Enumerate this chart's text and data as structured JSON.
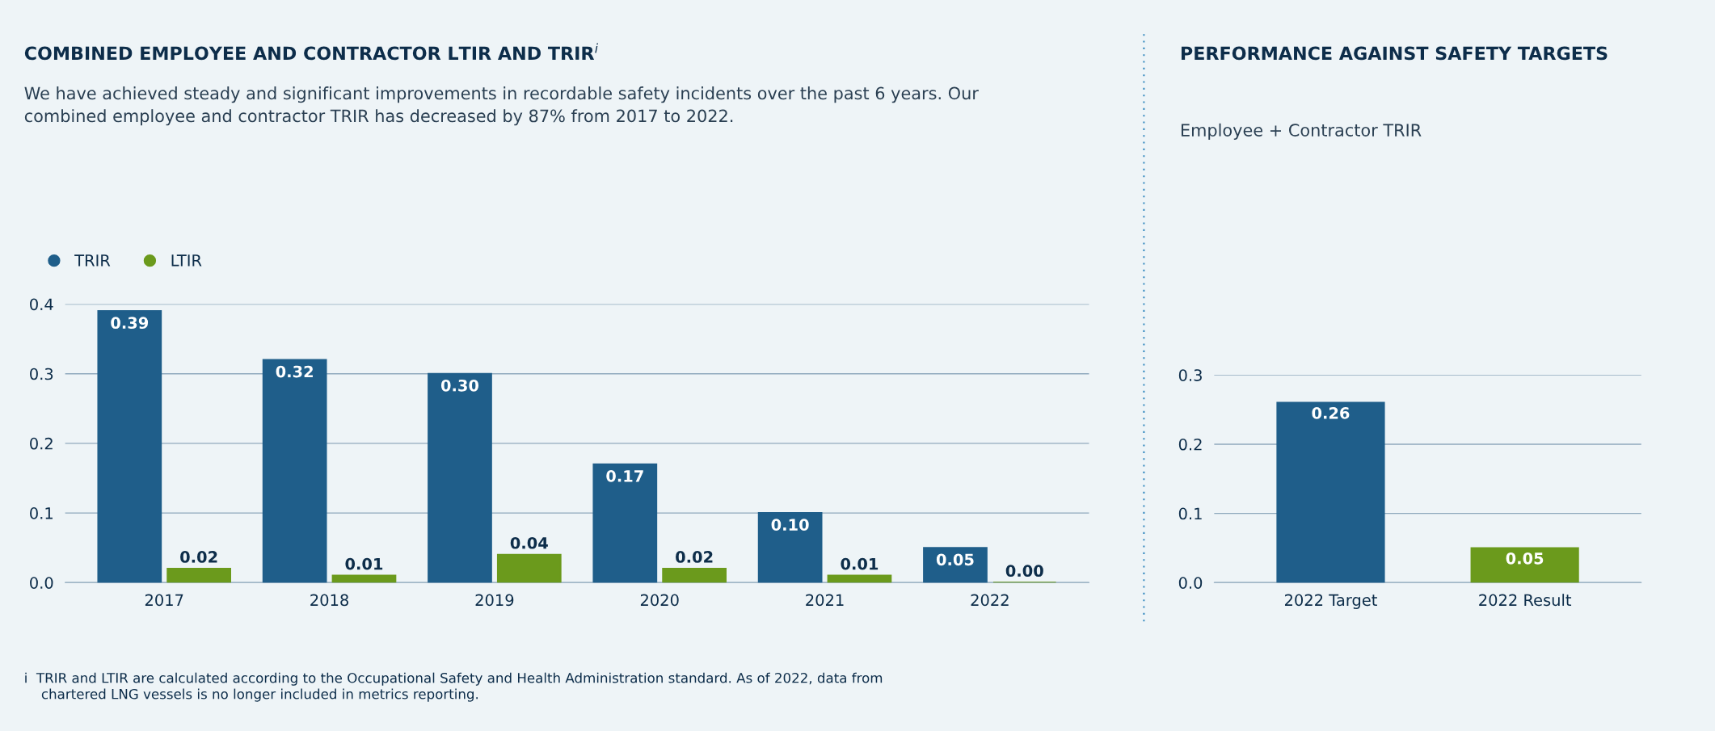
{
  "chart_data": [
    {
      "type": "bar",
      "title": "COMBINED EMPLOYEE AND CONTRACTOR LTIR AND TRIR$^{i}$",
      "subtitle": "We have achieved steady and significant improvements in recordable safety incidents over the past 6 years. Our\ncombined employee and contractor TRIR has decreased by 87% from 2017 to 2022.",
      "categories": [
        "2017",
        "2018",
        "2019",
        "2020",
        "2021",
        "2022"
      ],
      "series": [
        {
          "name": "TRIR",
          "color": "#1f5e8a",
          "values": [
            0.39,
            0.32,
            0.3,
            0.17,
            0.1,
            0.05
          ],
          "value_labels": [
            "0.39",
            "0.32",
            "0.30",
            "0.17",
            "0.10",
            "0.05"
          ]
        },
        {
          "name": "LTIR",
          "color": "#6b9a1c",
          "values": [
            0.02,
            0.01,
            0.04,
            0.02,
            0.01,
            0.0
          ],
          "value_labels": [
            "0.02",
            "0.01",
            "0.04",
            "0.02",
            "0.01",
            "0.00"
          ]
        }
      ],
      "ylim": [
        0.0,
        0.4
      ],
      "yticks": [
        {
          "value": 0,
          "label": "0.0"
        },
        0.1,
        0.2,
        0.3,
        0.4
      ],
      "grid": "y",
      "legend": "top left",
      "marker": "circle",
      "annotations": [
        "i  TRIR and LTIR are calculated according to the Occupational Safety and Health Administration standard. As of 2022, data from\n    chartered LNG vessels is no longer included in metrics reporting."
      ]
    },
    {
      "type": "bar",
      "title": "PERFORMANCE AGAINST SAFETY TARGETS",
      "subtitle": "Employee + Contractor TRIR",
      "categories": [
        "2022 Target",
        "2022 Result"
      ],
      "values": [
        0.26,
        0.05
      ],
      "colors": [
        "#1f5e8a",
        "#6b9a1c"
      ],
      "value_labels": [
        "0.26",
        "0.05"
      ],
      "ylim": [
        0.0,
        0.3
      ],
      "yticks": [
        {
          "value": 0,
          "label": "0.0"
        },
        0.1,
        0.2,
        0.3
      ],
      "grid": "y"
    }
  ]
}
